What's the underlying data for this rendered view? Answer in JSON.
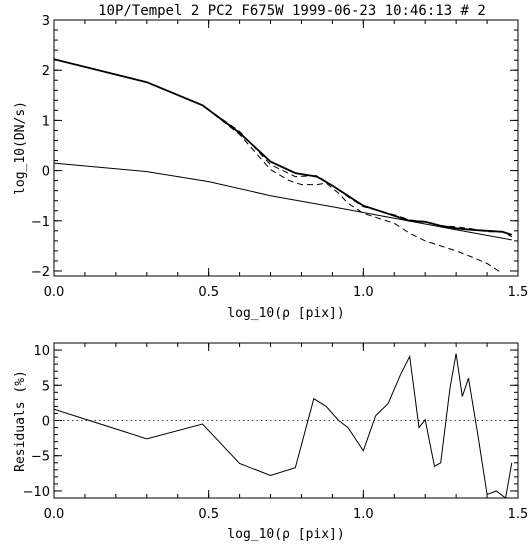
{
  "chart_data": [
    {
      "type": "line",
      "title": "10P/Tempel 2 PC2 F675W 1999-06-23 10:46:13 # 2",
      "xlabel": "log_10(ρ [pix])",
      "ylabel": "log_10(DN/s)",
      "xlim": [
        0.0,
        1.5
      ],
      "ylim": [
        -2.1,
        3.0
      ],
      "xticks": [
        0.0,
        0.5,
        1.0,
        1.5
      ],
      "xtick_labels": [
        "0.0",
        "0.5",
        "1.0",
        "1.5"
      ],
      "yticks": [
        -2,
        -1,
        0,
        1,
        2,
        3
      ],
      "ytick_labels": [
        "−2",
        "−1",
        "0",
        "1",
        "2",
        "3"
      ],
      "grid": false,
      "series": [
        {
          "style": "solid-thick",
          "x": [
            0.0,
            0.3,
            0.48,
            0.6,
            0.7,
            0.78,
            0.85,
            0.9,
            0.95,
            1.0,
            1.05,
            1.1,
            1.15,
            1.2,
            1.25,
            1.3,
            1.35,
            1.4,
            1.45,
            1.48
          ],
          "y": [
            2.22,
            1.76,
            1.3,
            0.75,
            0.18,
            -0.05,
            -0.12,
            -0.3,
            -0.5,
            -0.7,
            -0.8,
            -0.9,
            -1.0,
            -1.02,
            -1.1,
            -1.15,
            -1.18,
            -1.2,
            -1.22,
            -1.28
          ]
        },
        {
          "style": "dashed",
          "x": [
            0.0,
            0.3,
            0.48,
            0.6,
            0.7,
            0.78,
            0.85,
            0.9,
            0.95,
            1.0,
            1.05,
            1.1,
            1.15,
            1.2,
            1.25,
            1.3,
            1.35,
            1.4,
            1.45,
            1.48
          ],
          "y": [
            2.22,
            1.76,
            1.3,
            0.78,
            0.12,
            -0.12,
            -0.1,
            -0.3,
            -0.52,
            -0.72,
            -0.8,
            -0.88,
            -0.98,
            -1.02,
            -1.1,
            -1.12,
            -1.16,
            -1.22,
            -1.22,
            -1.32
          ]
        },
        {
          "style": "dashed",
          "x": [
            0.0,
            0.3,
            0.48,
            0.6,
            0.7,
            0.76,
            0.8,
            0.85,
            0.88,
            0.92,
            0.95,
            1.0,
            1.05,
            1.1,
            1.15,
            1.2,
            1.25,
            1.3,
            1.35,
            1.4,
            1.45
          ],
          "y": [
            2.22,
            1.76,
            1.3,
            0.72,
            0.02,
            -0.2,
            -0.28,
            -0.28,
            -0.25,
            -0.45,
            -0.65,
            -0.85,
            -0.95,
            -1.05,
            -1.25,
            -1.4,
            -1.5,
            -1.6,
            -1.72,
            -1.85,
            -2.05
          ]
        },
        {
          "style": "solid-thin",
          "x": [
            0.0,
            0.3,
            0.5,
            0.7,
            0.9,
            1.1,
            1.3,
            1.48
          ],
          "y": [
            0.15,
            -0.02,
            -0.22,
            -0.5,
            -0.72,
            -0.95,
            -1.18,
            -1.38
          ]
        }
      ]
    },
    {
      "type": "line",
      "xlabel": "log_10(ρ [pix])",
      "ylabel": "Residuals (%)",
      "xlim": [
        0.0,
        1.5
      ],
      "ylim": [
        -11,
        11
      ],
      "xticks": [
        0.0,
        0.5,
        1.0,
        1.5
      ],
      "xtick_labels": [
        "0.0",
        "0.5",
        "1.0",
        "1.5"
      ],
      "yticks": [
        -10,
        -5,
        0,
        5,
        10
      ],
      "ytick_labels": [
        "−10",
        "−5",
        "0",
        "5",
        "10"
      ],
      "grid": false,
      "reference_line": {
        "y": 0,
        "style": "dotted"
      },
      "series": [
        {
          "style": "solid",
          "x": [
            0.0,
            0.3,
            0.48,
            0.6,
            0.7,
            0.78,
            0.84,
            0.88,
            0.92,
            0.95,
            1.0,
            1.04,
            1.08,
            1.12,
            1.15,
            1.18,
            1.2,
            1.23,
            1.25,
            1.28,
            1.3,
            1.32,
            1.34,
            1.37,
            1.4,
            1.43,
            1.46,
            1.48
          ],
          "y": [
            1.6,
            -2.6,
            -0.5,
            -6.1,
            -7.8,
            -6.7,
            3.1,
            2.0,
            0.0,
            -1.0,
            -4.3,
            0.7,
            2.4,
            6.5,
            9.1,
            -1.0,
            0.1,
            -6.5,
            -6.0,
            4.5,
            9.5,
            3.4,
            6.0,
            -2.0,
            -10.5,
            -10.0,
            -11.0,
            -6.0
          ]
        }
      ]
    }
  ]
}
